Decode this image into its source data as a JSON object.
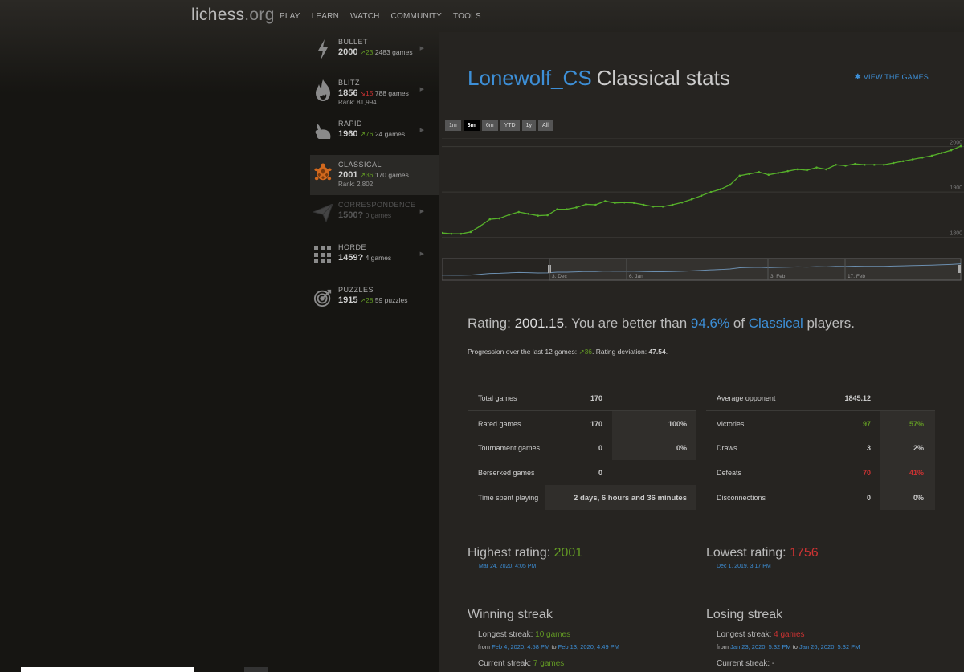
{
  "header": {
    "logo": "lichess",
    "logo_tld": ".org",
    "nav": [
      "PLAY",
      "LEARN",
      "WATCH",
      "COMMUNITY",
      "TOOLS"
    ]
  },
  "sidebar": {
    "items": [
      {
        "name": "BULLET",
        "rating": "2000",
        "delta": "23",
        "dir": "up",
        "games": "2483 games",
        "rank": "",
        "icon": "bolt-icon"
      },
      {
        "name": "BLITZ",
        "rating": "1856",
        "delta": "15",
        "dir": "down",
        "games": "788 games",
        "rank": "Rank: 81,994",
        "icon": "fire-icon"
      },
      {
        "name": "RAPID",
        "rating": "1960",
        "delta": "76",
        "dir": "up",
        "games": "24 games",
        "rank": "",
        "icon": "rabbit-icon"
      },
      {
        "name": "CLASSICAL",
        "rating": "2001",
        "delta": "36",
        "dir": "up",
        "games": "170 games",
        "rank": "Rank: 2,802",
        "icon": "turtle-icon"
      },
      {
        "name": "CORRESPONDENCE",
        "rating": "1500?",
        "delta": "",
        "dir": "",
        "games": "0 games",
        "rank": "",
        "icon": "paper-plane-icon"
      },
      {
        "name": "HORDE",
        "rating": "1459?",
        "delta": "",
        "dir": "",
        "games": "4 games",
        "rank": "",
        "icon": "horde-grid-icon"
      },
      {
        "name": "PUZZLES",
        "rating": "1915",
        "delta": "28",
        "dir": "up",
        "games": "59 puzzles",
        "rank": "",
        "icon": "target-icon"
      }
    ]
  },
  "main": {
    "username": "Lonewolf_CS",
    "title_rest": "Classical stats",
    "view_games": "VIEW THE GAMES",
    "ranges": [
      "1m",
      "3m",
      "6m",
      "YTD",
      "1y",
      "All"
    ],
    "active_range": "3m",
    "rating_prefix": "Rating: ",
    "rating_value": "2001.15",
    "rating_mid": ". You are better than ",
    "percentile": "94.6%",
    "rating_of": " of ",
    "variant": "Classical",
    "rating_end": " players.",
    "prog_prefix": "Progression over the last 12 games: ",
    "prog_value": "36",
    "prog_mid": ". Rating deviation: ",
    "deviation": "47.54",
    "prog_end": ".",
    "left_table": {
      "total_label": "Total games",
      "total_value": "170",
      "rated_label": "Rated games",
      "rated_value": "170",
      "rated_pct": "100%",
      "tourn_label": "Tournament games",
      "tourn_value": "0",
      "tourn_pct": "0%",
      "berserk_label": "Berserked games",
      "berserk_value": "0",
      "time_label": "Time spent playing",
      "time_value": "2 days, 6 hours and 36 minutes"
    },
    "right_table": {
      "avg_label": "Average opponent",
      "avg_value": "1845.12",
      "win_label": "Victories",
      "win_value": "97",
      "win_pct": "57%",
      "draw_label": "Draws",
      "draw_value": "3",
      "draw_pct": "2%",
      "loss_label": "Defeats",
      "loss_value": "70",
      "loss_pct": "41%",
      "disc_label": "Disconnections",
      "disc_value": "0",
      "disc_pct": "0%"
    },
    "highest_label": "Highest rating: ",
    "highest_value": "2001",
    "highest_date": "Mar 24, 2020, 4:05 PM",
    "lowest_label": "Lowest rating: ",
    "lowest_value": "1756",
    "lowest_date": "Dec 1, 2019, 3:17 PM",
    "win_streak_title": "Winning streak",
    "lose_streak_title": "Losing streak",
    "win_longest_label": "Longest streak: ",
    "win_longest_value": "10 games",
    "win_from": "Feb 4, 2020, 4:58 PM",
    "win_to": "Feb 13, 2020, 4:49 PM",
    "win_current_label": "Current streak: ",
    "win_current_value": "7 games",
    "lose_longest_label": "Longest streak: ",
    "lose_longest_value": "4 games",
    "lose_from": "Jan 23, 2020, 5:32 PM",
    "lose_to": "Jan 26, 2020, 5:32 PM",
    "lose_current_label": "Current streak: ",
    "lose_current_value": "-",
    "from_word": "from ",
    "to_word": " to "
  },
  "chart_data": {
    "type": "line",
    "title": "",
    "y_ticks": [
      "1800",
      "1900",
      "2000"
    ],
    "ylim": [
      1780,
      2010
    ],
    "navigator_labels": [
      "3. Dec",
      "6. Jan",
      "3. Feb",
      "17. Feb"
    ],
    "series": [
      {
        "name": "",
        "color": "#56b02a",
        "values": [
          1810,
          1808,
          1808,
          1812,
          1825,
          1840,
          1842,
          1850,
          1856,
          1852,
          1848,
          1849,
          1862,
          1862,
          1866,
          1873,
          1872,
          1880,
          1876,
          1877,
          1876,
          1872,
          1868,
          1868,
          1872,
          1877,
          1884,
          1892,
          1900,
          1906,
          1916,
          1936,
          1940,
          1944,
          1938,
          1942,
          1946,
          1950,
          1948,
          1954,
          1950,
          1960,
          1958,
          1962,
          1960,
          1960,
          1960,
          1964,
          1968,
          1972,
          1976,
          1980,
          1986,
          1992,
          2001
        ]
      }
    ]
  }
}
